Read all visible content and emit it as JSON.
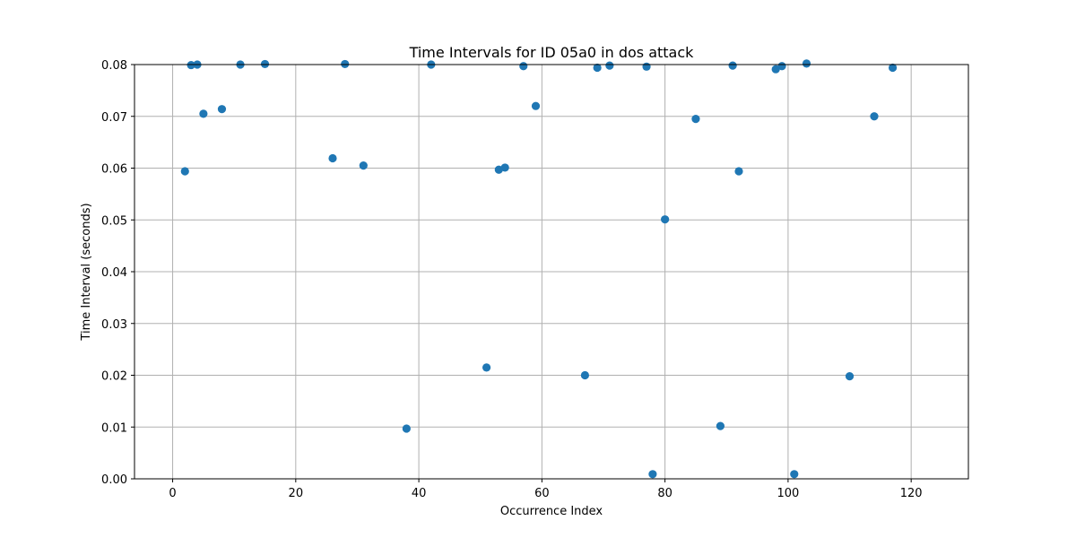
{
  "chart_data": {
    "type": "scatter",
    "title": "Time Intervals for ID 05a0 in dos attack",
    "xlabel": "Occurrence Index",
    "ylabel": "Time Interval (seconds)",
    "xlim": [
      -6.2,
      129.3
    ],
    "ylim": [
      0,
      0.08
    ],
    "xticks": [
      0,
      20,
      40,
      60,
      80,
      100,
      120
    ],
    "yticks": [
      0.0,
      0.01,
      0.02,
      0.03,
      0.04,
      0.05,
      0.06,
      0.07,
      0.08
    ],
    "xtick_labels": [
      "0",
      "20",
      "40",
      "60",
      "80",
      "100",
      "120"
    ],
    "ytick_labels": [
      "0.00",
      "0.01",
      "0.02",
      "0.03",
      "0.04",
      "0.05",
      "0.06",
      "0.07",
      "0.08"
    ],
    "grid": true,
    "color": "#1f77b4",
    "points": [
      {
        "x": 2,
        "y": 0.0594
      },
      {
        "x": 3,
        "y": 0.0799
      },
      {
        "x": 4,
        "y": 0.08
      },
      {
        "x": 5,
        "y": 0.0705
      },
      {
        "x": 8,
        "y": 0.0714
      },
      {
        "x": 11,
        "y": 0.08
      },
      {
        "x": 15,
        "y": 0.0801
      },
      {
        "x": 26,
        "y": 0.0619
      },
      {
        "x": 28,
        "y": 0.0801
      },
      {
        "x": 31,
        "y": 0.0605
      },
      {
        "x": 38,
        "y": 0.0097
      },
      {
        "x": 42,
        "y": 0.08
      },
      {
        "x": 51,
        "y": 0.0215
      },
      {
        "x": 53,
        "y": 0.0597
      },
      {
        "x": 54,
        "y": 0.0601
      },
      {
        "x": 57,
        "y": 0.0797
      },
      {
        "x": 59,
        "y": 0.072
      },
      {
        "x": 67,
        "y": 0.02
      },
      {
        "x": 69,
        "y": 0.0794
      },
      {
        "x": 71,
        "y": 0.0798
      },
      {
        "x": 77,
        "y": 0.0796
      },
      {
        "x": 78,
        "y": 0.0009
      },
      {
        "x": 80,
        "y": 0.0501
      },
      {
        "x": 85,
        "y": 0.0695
      },
      {
        "x": 89,
        "y": 0.0102
      },
      {
        "x": 91,
        "y": 0.0798
      },
      {
        "x": 92,
        "y": 0.0594
      },
      {
        "x": 98,
        "y": 0.0791
      },
      {
        "x": 99,
        "y": 0.0797
      },
      {
        "x": 101,
        "y": 0.0009
      },
      {
        "x": 103,
        "y": 0.0802
      },
      {
        "x": 110,
        "y": 0.0198
      },
      {
        "x": 114,
        "y": 0.07
      },
      {
        "x": 117,
        "y": 0.0794
      }
    ]
  }
}
